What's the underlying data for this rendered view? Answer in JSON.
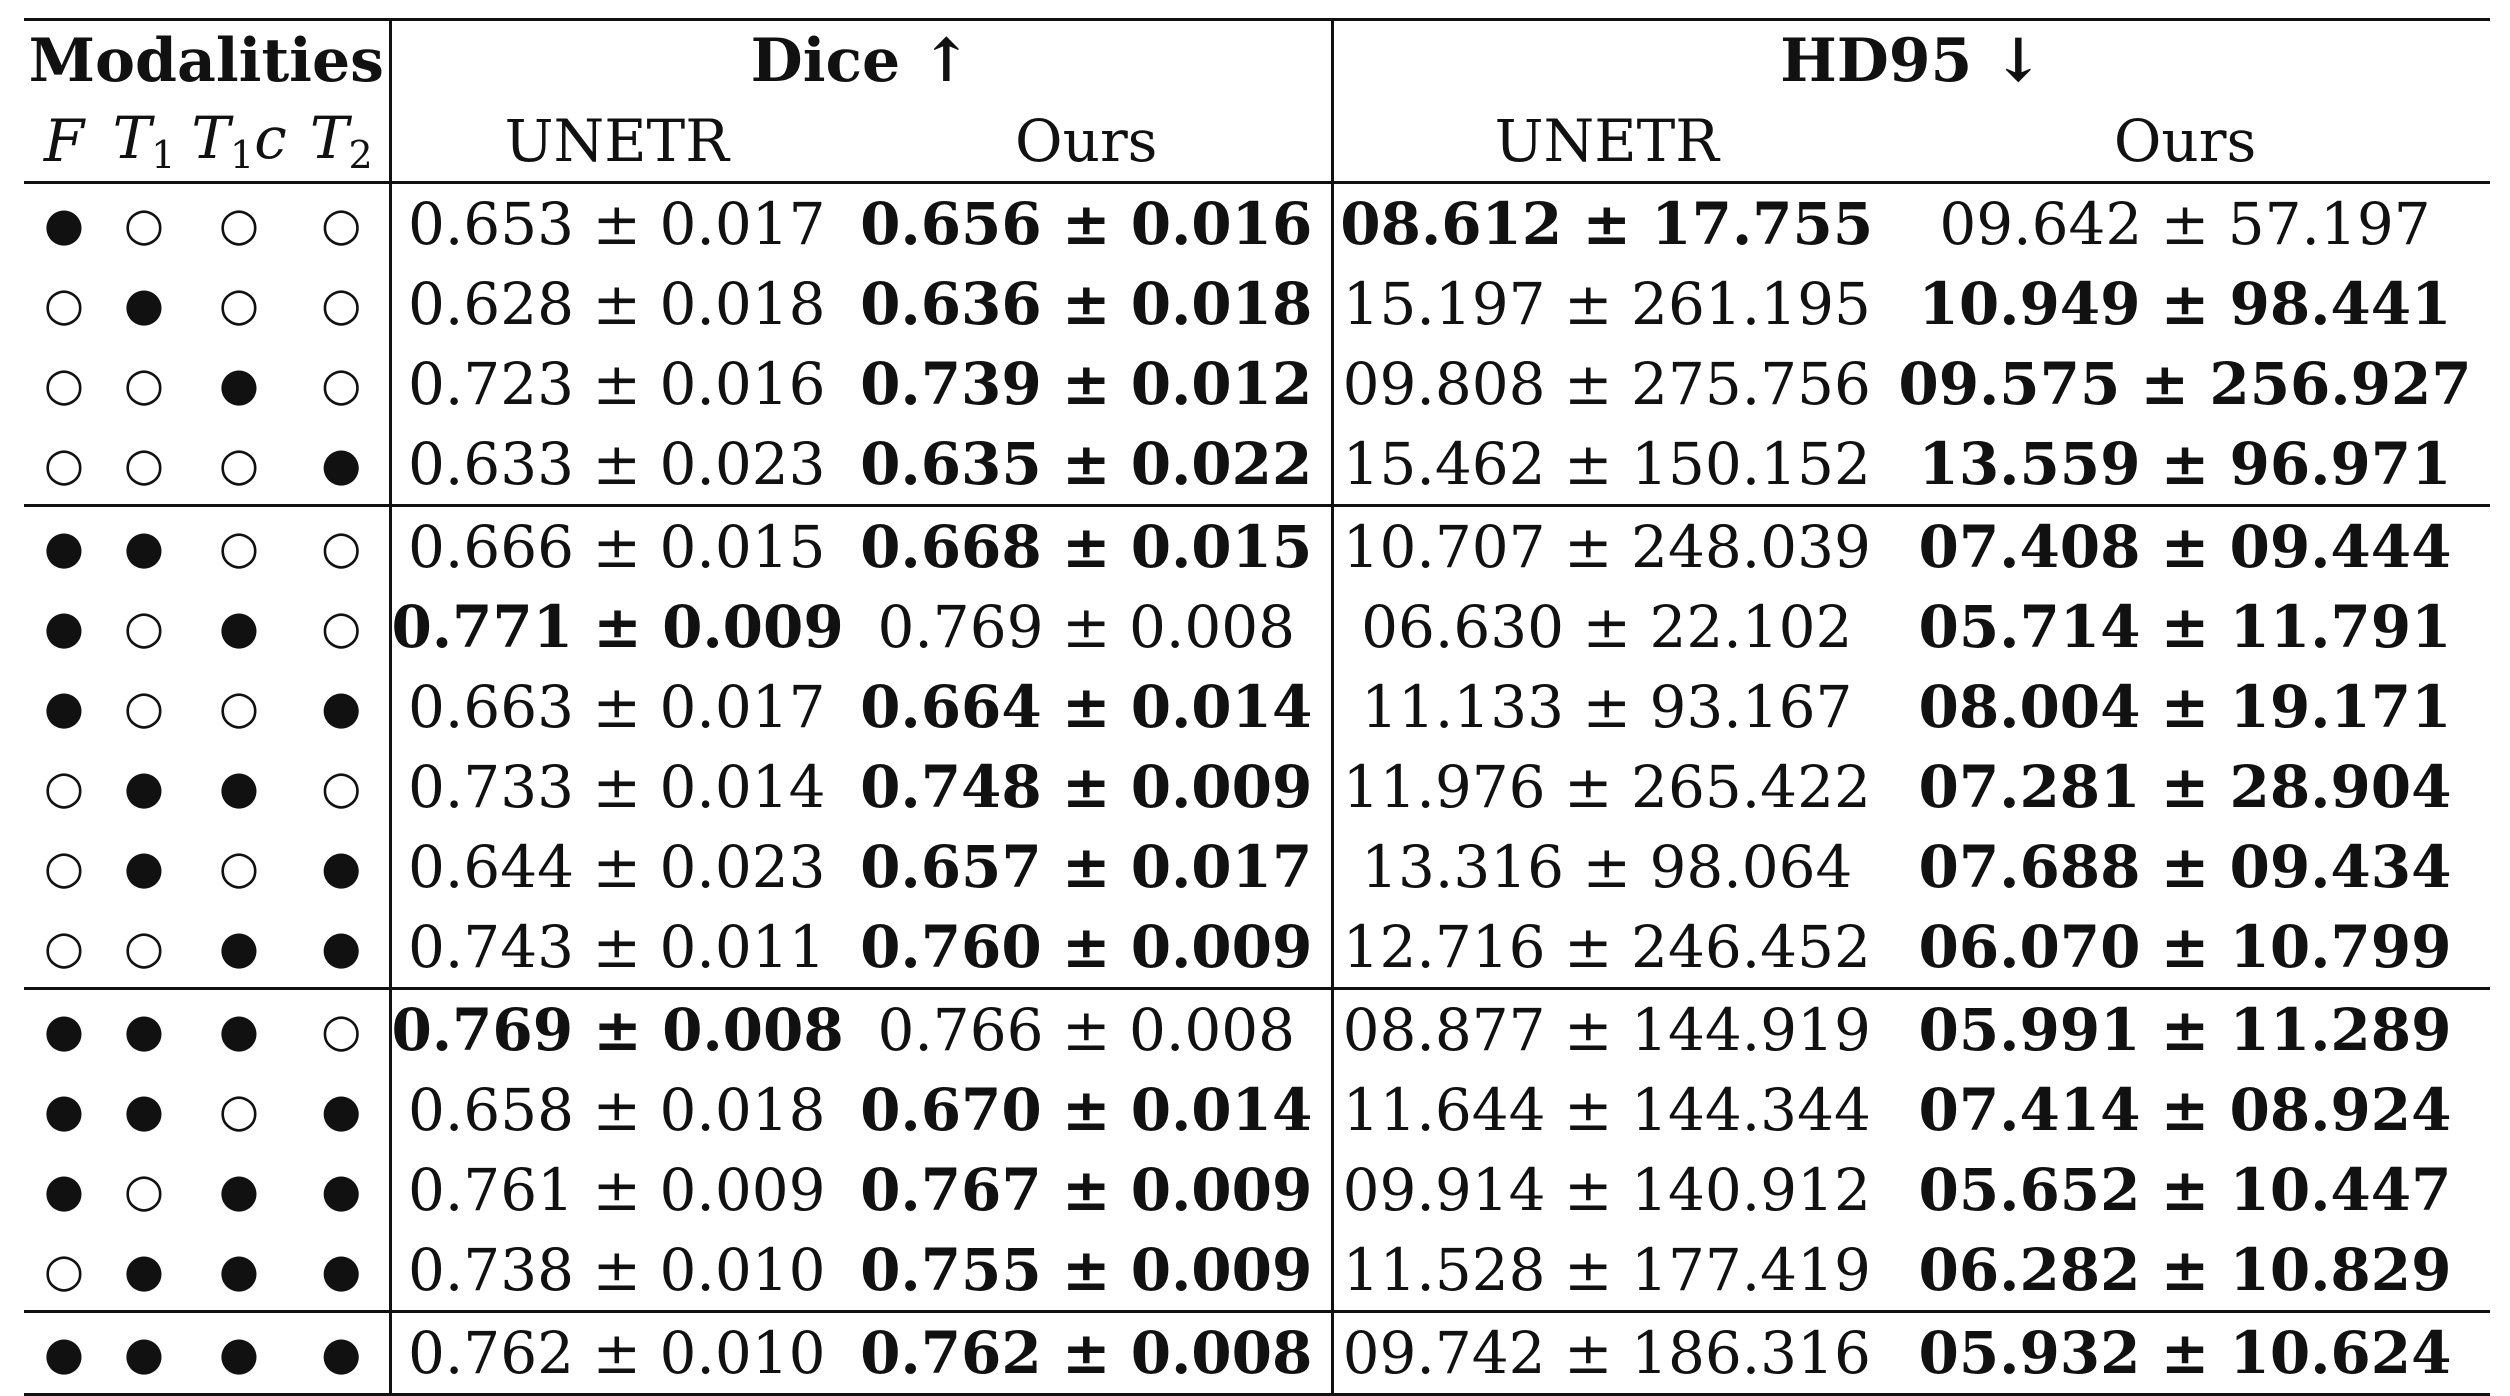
{
  "header": {
    "modalities_label": "Modalities",
    "dice_label": "Dice ↑",
    "hd95_label": "HD95 ↓",
    "mod_cols": [
      {
        "base": "F",
        "sub": ""
      },
      {
        "base": "T",
        "sub": "1"
      },
      {
        "base": "T",
        "sub": "1",
        "suffix": "c"
      },
      {
        "base": "T",
        "sub": "2"
      }
    ],
    "dice_sub": [
      "UNETR",
      "Ours"
    ],
    "hd95_sub": [
      "UNETR",
      "Ours"
    ]
  },
  "symbols": {
    "present": "●",
    "absent": "○"
  },
  "rows": [
    {
      "mods": [
        1,
        0,
        0,
        0
      ],
      "dice_unetr": "0.653 ± 0.017",
      "dice_ours": "0.656 ± 0.016",
      "hd_unetr": "08.612 ± 17.755",
      "hd_ours": "09.642 ± 57.197",
      "bold": [
        "dice_ours",
        "hd_unetr"
      ],
      "sep": false
    },
    {
      "mods": [
        0,
        1,
        0,
        0
      ],
      "dice_unetr": "0.628 ± 0.018",
      "dice_ours": "0.636 ± 0.018",
      "hd_unetr": "15.197 ± 261.195",
      "hd_ours": "10.949 ± 98.441",
      "bold": [
        "dice_ours",
        "hd_ours"
      ],
      "sep": false
    },
    {
      "mods": [
        0,
        0,
        1,
        0
      ],
      "dice_unetr": "0.723 ± 0.016",
      "dice_ours": "0.739 ± 0.012",
      "hd_unetr": "09.808 ± 275.756",
      "hd_ours": "09.575 ± 256.927",
      "bold": [
        "dice_ours",
        "hd_ours"
      ],
      "sep": false
    },
    {
      "mods": [
        0,
        0,
        0,
        1
      ],
      "dice_unetr": "0.633 ± 0.023",
      "dice_ours": "0.635 ± 0.022",
      "hd_unetr": "15.462 ± 150.152",
      "hd_ours": "13.559 ± 96.971",
      "bold": [
        "dice_ours",
        "hd_ours"
      ],
      "sep": false
    },
    {
      "mods": [
        1,
        1,
        0,
        0
      ],
      "dice_unetr": "0.666 ± 0.015",
      "dice_ours": "0.668 ± 0.015",
      "hd_unetr": "10.707 ± 248.039",
      "hd_ours": "07.408 ± 09.444",
      "bold": [
        "dice_ours",
        "hd_ours"
      ],
      "sep": true
    },
    {
      "mods": [
        1,
        0,
        1,
        0
      ],
      "dice_unetr": "0.771 ± 0.009",
      "dice_ours": "0.769 ± 0.008",
      "hd_unetr": "06.630 ± 22.102",
      "hd_ours": "05.714 ± 11.791",
      "bold": [
        "dice_unetr",
        "hd_ours"
      ],
      "sep": false
    },
    {
      "mods": [
        1,
        0,
        0,
        1
      ],
      "dice_unetr": "0.663 ± 0.017",
      "dice_ours": "0.664 ± 0.014",
      "hd_unetr": "11.133 ± 93.167",
      "hd_ours": "08.004 ± 19.171",
      "bold": [
        "dice_ours",
        "hd_ours"
      ],
      "sep": false
    },
    {
      "mods": [
        0,
        1,
        1,
        0
      ],
      "dice_unetr": "0.733 ± 0.014",
      "dice_ours": "0.748 ± 0.009",
      "hd_unetr": "11.976 ± 265.422",
      "hd_ours": "07.281 ± 28.904",
      "bold": [
        "dice_ours",
        "hd_ours"
      ],
      "sep": false
    },
    {
      "mods": [
        0,
        1,
        0,
        1
      ],
      "dice_unetr": "0.644 ± 0.023",
      "dice_ours": "0.657 ± 0.017",
      "hd_unetr": "13.316 ± 98.064",
      "hd_ours": "07.688 ± 09.434",
      "bold": [
        "dice_ours",
        "hd_ours"
      ],
      "sep": false
    },
    {
      "mods": [
        0,
        0,
        1,
        1
      ],
      "dice_unetr": "0.743 ± 0.011",
      "dice_ours": "0.760 ± 0.009",
      "hd_unetr": "12.716 ± 246.452",
      "hd_ours": "06.070 ± 10.799",
      "bold": [
        "dice_ours",
        "hd_ours"
      ],
      "sep": false
    },
    {
      "mods": [
        1,
        1,
        1,
        0
      ],
      "dice_unetr": "0.769 ± 0.008",
      "dice_ours": "0.766 ± 0.008",
      "hd_unetr": "08.877 ± 144.919",
      "hd_ours": "05.991 ± 11.289",
      "bold": [
        "dice_unetr",
        "hd_ours"
      ],
      "sep": true
    },
    {
      "mods": [
        1,
        1,
        0,
        1
      ],
      "dice_unetr": "0.658 ± 0.018",
      "dice_ours": "0.670 ± 0.014",
      "hd_unetr": "11.644 ± 144.344",
      "hd_ours": "07.414 ± 08.924",
      "bold": [
        "dice_ours",
        "hd_ours"
      ],
      "sep": false
    },
    {
      "mods": [
        1,
        0,
        1,
        1
      ],
      "dice_unetr": "0.761 ± 0.009",
      "dice_ours": "0.767 ± 0.009",
      "hd_unetr": "09.914 ± 140.912",
      "hd_ours": "05.652 ± 10.447",
      "bold": [
        "dice_ours",
        "hd_ours"
      ],
      "sep": false
    },
    {
      "mods": [
        0,
        1,
        1,
        1
      ],
      "dice_unetr": "0.738 ± 0.010",
      "dice_ours": "0.755 ± 0.009",
      "hd_unetr": "11.528 ± 177.419",
      "hd_ours": "06.282 ± 10.829",
      "bold": [
        "dice_ours",
        "hd_ours"
      ],
      "sep": false
    },
    {
      "mods": [
        1,
        1,
        1,
        1
      ],
      "dice_unetr": "0.762 ± 0.010",
      "dice_ours": "0.762 ± 0.008",
      "hd_unetr": "09.742 ± 186.316",
      "hd_ours": "05.932 ± 10.624",
      "bold": [
        "dice_ours",
        "hd_ours"
      ],
      "sep": true
    }
  ]
}
